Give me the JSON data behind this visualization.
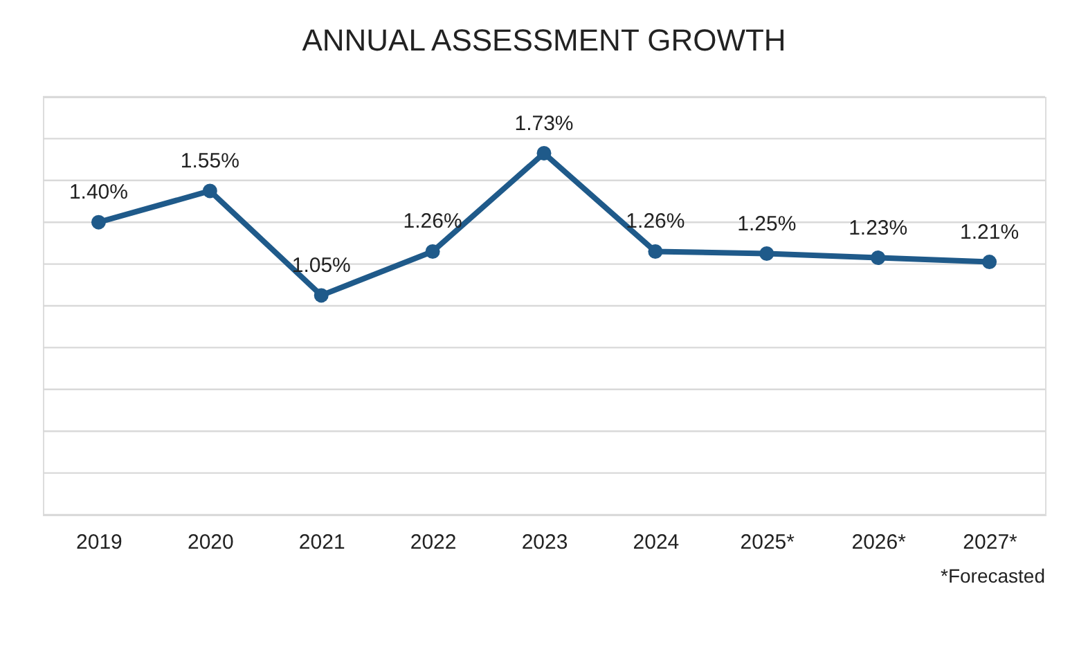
{
  "chart_data": {
    "type": "line",
    "title": "ANNUAL ASSESSMENT GROWTH",
    "categories": [
      "2019",
      "2020",
      "2021",
      "2022",
      "2023",
      "2024",
      "2025*",
      "2026*",
      "2027*"
    ],
    "series": [
      {
        "color": "#1f5a8a",
        "values": [
          1.4,
          1.55,
          1.05,
          1.26,
          1.73,
          1.26,
          1.25,
          1.23,
          1.21
        ],
        "value_labels": [
          "1.40%",
          "1.55%",
          "1.05%",
          "1.26%",
          "1.73%",
          "1.26%",
          "1.25%",
          "1.23%",
          "1.21%"
        ]
      }
    ],
    "ylim": [
      0,
      2
    ],
    "yticks": [
      {
        "value": 0,
        "label": null
      },
      {
        "value": 0.2,
        "label": null
      },
      {
        "value": 0.4,
        "label": null
      },
      {
        "value": 0.6,
        "label": null
      },
      {
        "value": 0.8,
        "label": null
      },
      {
        "value": 1.0,
        "label": null
      },
      {
        "value": 1.2,
        "label": null
      },
      {
        "value": 1.4,
        "label": null
      },
      {
        "value": 1.6,
        "label": null
      },
      {
        "value": 1.8,
        "label": null
      },
      {
        "value": 2.0,
        "label": null
      }
    ],
    "grid": "y",
    "tick_labels": "x",
    "marker": "circle",
    "line_style": "solid",
    "annotations": [
      "*Forecasted"
    ]
  }
}
